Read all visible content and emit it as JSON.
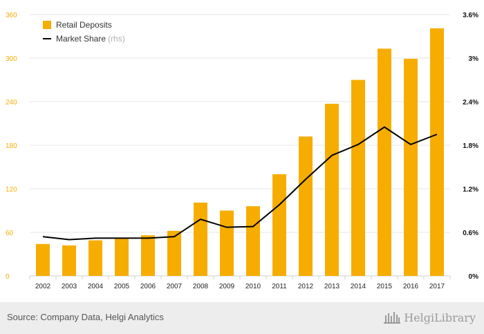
{
  "chart_data": {
    "type": "bar",
    "categories": [
      "2002",
      "2003",
      "2004",
      "2005",
      "2006",
      "2007",
      "2008",
      "2009",
      "2010",
      "2011",
      "2012",
      "2013",
      "2014",
      "2015",
      "2016",
      "2017"
    ],
    "series": [
      {
        "name": "Retail Deposits",
        "type": "bar",
        "axis": "left",
        "color": "#f6ad00",
        "values": [
          44,
          42,
          49,
          52,
          56,
          62,
          101,
          90,
          96,
          140,
          192,
          237,
          270,
          313,
          299,
          341
        ]
      },
      {
        "name": "Market Share",
        "type": "line",
        "axis": "right",
        "color": "#000000",
        "values": [
          0.54,
          0.5,
          0.52,
          0.52,
          0.52,
          0.54,
          0.78,
          0.67,
          0.68,
          0.98,
          1.33,
          1.66,
          1.81,
          2.05,
          1.81,
          1.95
        ]
      }
    ],
    "y_left": {
      "range": [
        0,
        360
      ],
      "ticks": [
        "0",
        "60",
        "120",
        "180",
        "240",
        "300",
        "360"
      ],
      "color": "#f6ad00"
    },
    "y_right": {
      "range": [
        0,
        3.6
      ],
      "ticks": [
        "0%",
        "0.6%",
        "1.2%",
        "1.8%",
        "2.4%",
        "3%",
        "3.6%"
      ]
    },
    "grid": true,
    "legend": {
      "placement": "top-left",
      "items": [
        {
          "label": "Retail Deposits",
          "suffix": ""
        },
        {
          "label": "Market Share",
          "suffix": "(rhs)"
        }
      ]
    }
  },
  "footer": {
    "source": "Source: Company Data, Helgi Analytics",
    "logo_text": "HelgiLibrary"
  }
}
